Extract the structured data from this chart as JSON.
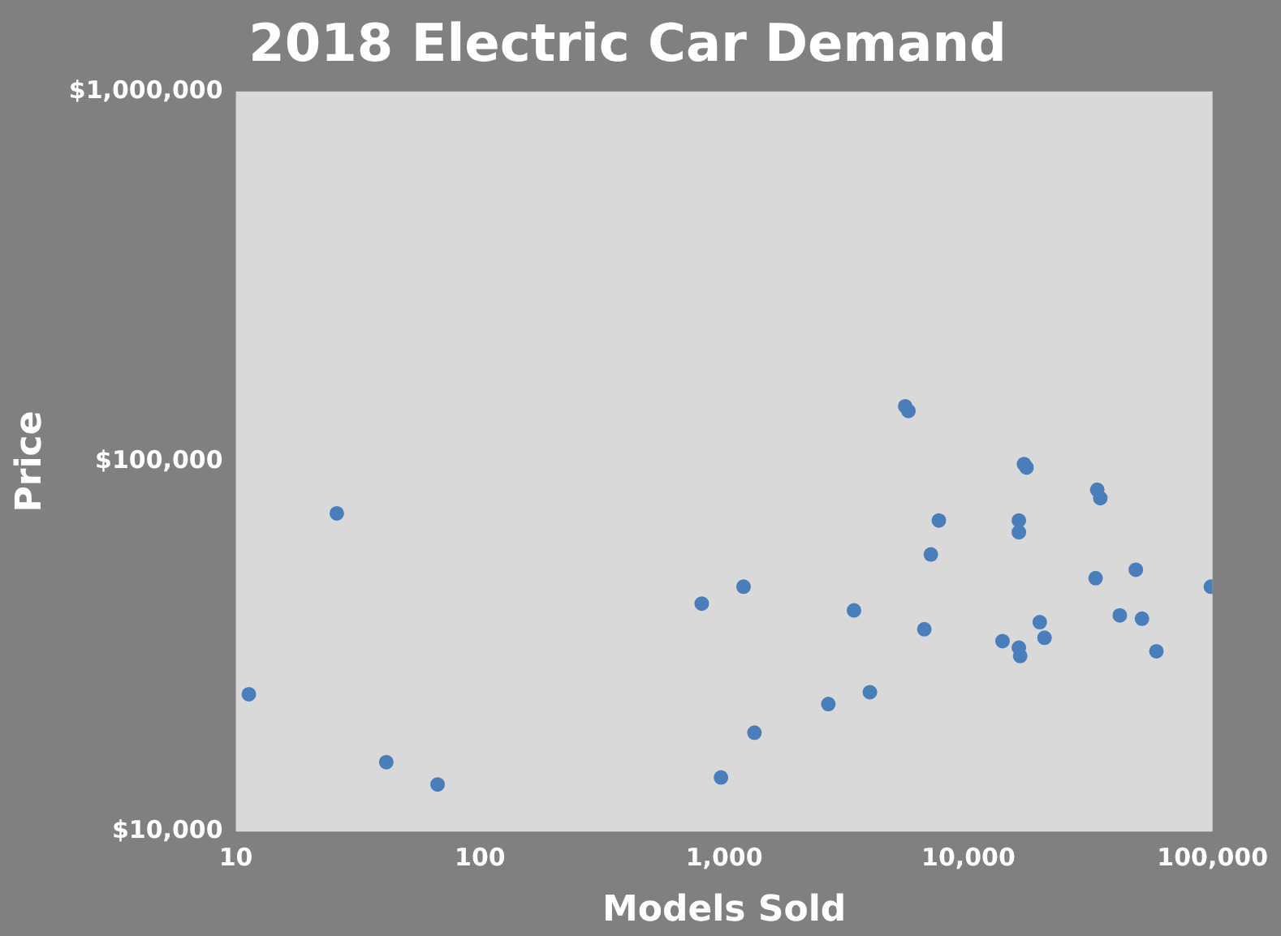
{
  "chart_data": {
    "type": "scatter",
    "title": "2018 Electric Car Demand",
    "xlabel": "Models Sold",
    "ylabel": "Price",
    "log": "xy",
    "grid": false,
    "legend": false,
    "marker": "circle",
    "xlim": [
      10,
      100000
    ],
    "ylim": [
      10000,
      1000000
    ],
    "xticks": [
      {
        "value": 10,
        "label": "10"
      },
      {
        "value": 100,
        "label": "100"
      },
      {
        "value": 1000,
        "label": "1,000"
      },
      {
        "value": 10000,
        "label": "10,000"
      },
      {
        "value": 100000,
        "label": "100,000"
      }
    ],
    "yticks": [
      {
        "value": 10000,
        "label": "$10,000"
      },
      {
        "value": 100000,
        "label": "$100,000"
      },
      {
        "value": 1000000,
        "label": "$1,000,000"
      }
    ],
    "series": [
      {
        "color": "#4a7ebb",
        "x": [
          11.3,
          25.9,
          41.3,
          67,
          809,
          1200,
          970,
          1330,
          2670,
          3400,
          3950,
          5510,
          5680,
          6600,
          7570,
          7020,
          13800,
          16100,
          16100,
          16900,
          17300,
          16100,
          16300,
          19600,
          20500,
          33200,
          33700,
          34700,
          41700,
          48500,
          51400,
          58900,
          98400
        ],
        "values": [
          23500,
          72400,
          15400,
          13400,
          41300,
          45900,
          14000,
          18500,
          22100,
          39600,
          23800,
          141000,
          137000,
          35200,
          69300,
          56100,
          32700,
          69300,
          64400,
          98400,
          96300,
          31400,
          29800,
          36800,
          33400,
          48400,
          83900,
          79600,
          38400,
          51000,
          37600,
          30700,
          45900
        ]
      }
    ]
  }
}
